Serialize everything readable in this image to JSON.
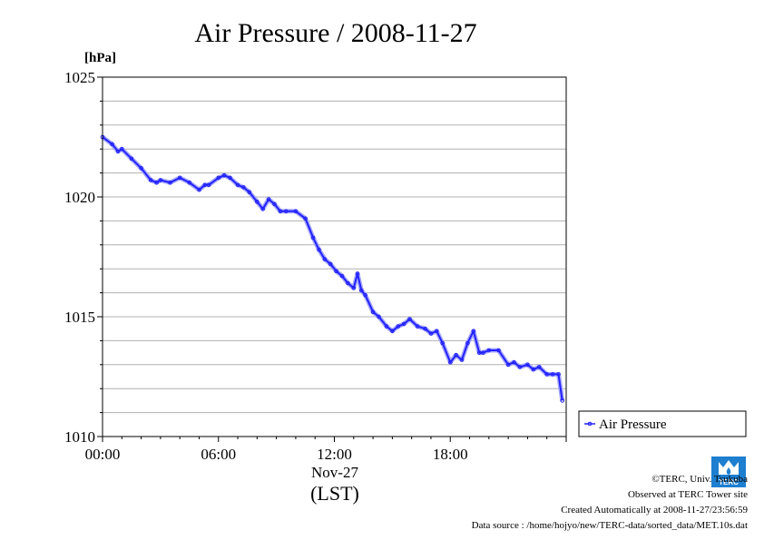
{
  "chart_data": {
    "type": "line",
    "title": "Air Pressure / 2008-11-27",
    "ylabel": "[hPa]",
    "xlabel": "(LST)",
    "x_date_label": "Nov-27",
    "ylim": [
      1010,
      1025
    ],
    "xlim_hours": [
      0,
      24
    ],
    "y_ticks": [
      "1010",
      "1015",
      "1020",
      "1025"
    ],
    "x_ticks": [
      "00:00",
      "06:00",
      "12:00",
      "18:00"
    ],
    "grid": true,
    "legend_position": "right",
    "series": [
      {
        "name": "Air Pressure",
        "color": "#2222ff",
        "x_hours": [
          0.0,
          0.5,
          0.8,
          1.0,
          1.5,
          2.0,
          2.5,
          2.8,
          3.0,
          3.5,
          4.0,
          4.5,
          5.0,
          5.3,
          5.5,
          6.0,
          6.3,
          6.6,
          7.0,
          7.3,
          7.6,
          8.0,
          8.3,
          8.6,
          8.9,
          9.2,
          9.5,
          10.0,
          10.5,
          10.9,
          11.2,
          11.5,
          11.8,
          12.1,
          12.4,
          12.7,
          13.0,
          13.2,
          13.4,
          13.6,
          14.0,
          14.3,
          14.7,
          15.0,
          15.3,
          15.6,
          15.9,
          16.3,
          16.7,
          17.0,
          17.3,
          17.6,
          18.0,
          18.3,
          18.6,
          18.9,
          19.2,
          19.5,
          19.7,
          20.0,
          20.5,
          21.0,
          21.3,
          21.6,
          22.0,
          22.3,
          22.6,
          23.0,
          23.3,
          23.6,
          23.8
        ],
        "values": [
          1022.5,
          1022.2,
          1021.9,
          1022.0,
          1021.6,
          1021.2,
          1020.7,
          1020.6,
          1020.7,
          1020.6,
          1020.8,
          1020.6,
          1020.3,
          1020.5,
          1020.5,
          1020.8,
          1020.9,
          1020.8,
          1020.5,
          1020.4,
          1020.2,
          1019.8,
          1019.5,
          1019.9,
          1019.7,
          1019.4,
          1019.4,
          1019.4,
          1019.1,
          1018.3,
          1017.8,
          1017.4,
          1017.2,
          1016.9,
          1016.7,
          1016.4,
          1016.2,
          1016.8,
          1016.1,
          1015.9,
          1015.2,
          1015.0,
          1014.6,
          1014.4,
          1014.6,
          1014.7,
          1014.9,
          1014.6,
          1014.5,
          1014.3,
          1014.4,
          1013.9,
          1013.1,
          1013.4,
          1013.2,
          1013.9,
          1014.4,
          1013.5,
          1013.5,
          1013.6,
          1013.6,
          1013.0,
          1013.1,
          1012.9,
          1013.0,
          1012.8,
          1012.9,
          1012.6,
          1012.6,
          1012.6,
          1011.5
        ]
      }
    ]
  },
  "footer": {
    "copyright": "©TERC, Univ. Tsukuba",
    "observed": "Observed at TERC Tower site",
    "created": "Created Automatically at 2008-11-27/23:56:59",
    "source": "Data source : /home/hojyo/new/TERC-data/sorted_data/MET.10s.dat"
  },
  "logo": {
    "text": "TERC",
    "color": "#1e7fd0"
  }
}
